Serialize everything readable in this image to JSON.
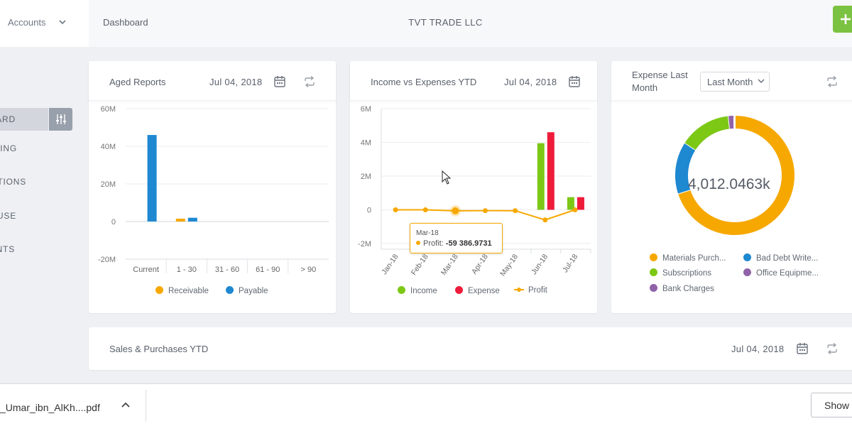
{
  "topbar": {
    "account_label": "Accounts",
    "breadcrumb": "Dashboard",
    "company": "TVT TRADE LLC"
  },
  "sidebar": {
    "items": [
      {
        "label": "DASHBOARD",
        "shown": "ARD"
      },
      {
        "label": "REPORTING",
        "shown": "TING"
      },
      {
        "label": "TRANSACTIONS",
        "shown": "TIONS"
      },
      {
        "label": "WAREHOUSE",
        "shown": "USE"
      },
      {
        "label": "CLIENTS",
        "shown": "NTS"
      }
    ]
  },
  "cards": {
    "aged": {
      "title": "Aged Reports",
      "date": "Jul 04, 2018"
    },
    "income": {
      "title": "Income vs Expenses YTD",
      "date": "Jul 04, 2018"
    },
    "expense": {
      "title_line1": "Expense Last",
      "title_line2": "Month",
      "period": "Last Month"
    },
    "sales": {
      "title": "Sales & Purchases YTD",
      "date": "Jul 04, 2018"
    }
  },
  "chart_data": [
    {
      "type": "bar",
      "categories": [
        "Current",
        "1 - 30",
        "31 - 60",
        "61 - 90",
        "> 90"
      ],
      "series": [
        {
          "name": "Receivable",
          "values": [
            0,
            1.5,
            0,
            0,
            0
          ],
          "color": "#f6a800"
        },
        {
          "name": "Payable",
          "values": [
            46,
            2,
            0,
            0,
            0
          ],
          "color": "#1e88d1"
        }
      ],
      "yticks": [
        "60M",
        "40M",
        "20M",
        "0",
        "-20M"
      ],
      "ylim": [
        -20,
        60
      ],
      "unit": "M"
    },
    {
      "type": "bar",
      "categories": [
        "Jan-18",
        "Feb-18",
        "Mar-18",
        "Apr-18",
        "May-18",
        "Jun-18",
        "Jul-18"
      ],
      "series": [
        {
          "name": "Income",
          "values": [
            0,
            0,
            0,
            0,
            0,
            3.95,
            0.75
          ],
          "color": "#7cc815"
        },
        {
          "name": "Expense",
          "values": [
            0,
            0,
            0,
            0,
            0,
            4.6,
            0.75
          ],
          "color": "#ee1c3a"
        },
        {
          "name": "Profit",
          "type": "line",
          "values": [
            0,
            0,
            -0.06,
            -0.05,
            -0.05,
            -0.6,
            0
          ],
          "color": "#f6a800"
        }
      ],
      "yticks": [
        "6M",
        "4M",
        "2M",
        "0",
        "-2M"
      ],
      "ylim": [
        -2,
        6
      ],
      "unit": "M",
      "tooltip": {
        "date": "Mar-18",
        "label": "Profit:",
        "value": "-59 386.9731"
      }
    },
    {
      "type": "pie",
      "center_label": "4,012.0463k",
      "slices": [
        {
          "label": "Materials Purch...",
          "value": 69.5,
          "color": "#f6a800"
        },
        {
          "label": "Bad Debt Write...",
          "value": 14,
          "color": "#1e88d1"
        },
        {
          "label": "Subscriptions",
          "value": 14,
          "color": "#7cc815"
        },
        {
          "label": "Office Equipme...",
          "value": 1.5,
          "color": "#9062a8"
        },
        {
          "label": "Bank Charges",
          "value": 0.2,
          "color": "#9062a8"
        }
      ]
    }
  ],
  "downloads": {
    "file": "_Umar_ibn_AlKh....pdf",
    "show_label": "Show"
  }
}
